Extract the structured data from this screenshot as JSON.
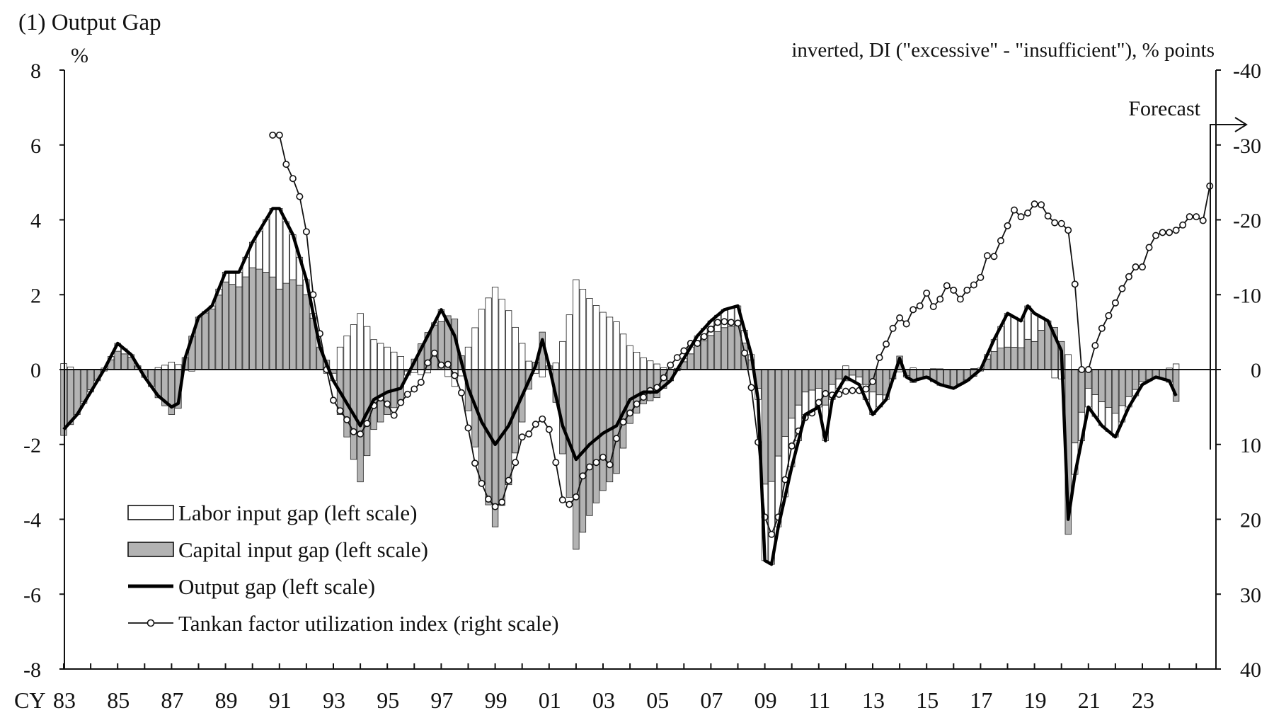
{
  "chart_data": {
    "type": "bar+line",
    "title": "(1) Output Gap",
    "left_axis_unit": "%",
    "right_axis_label": "inverted, DI (\"excessive\" - \"insufficient\"), % points",
    "x_axis_prefix": "CY",
    "forecast_label": "Forecast",
    "left_ylim": [
      -8,
      8
    ],
    "left_ticks": [
      "8",
      "6",
      "4",
      "2",
      "0",
      "-2",
      "-4",
      "-6",
      "-8"
    ],
    "right_ylim": [
      40,
      -40
    ],
    "right_ticks": [
      "-40",
      "-30",
      "-20",
      "-10",
      "0",
      "10",
      "20",
      "30",
      "40"
    ],
    "x_tick_labels": [
      "83",
      "85",
      "87",
      "89",
      "91",
      "93",
      "95",
      "97",
      "99",
      "01",
      "03",
      "05",
      "07",
      "09",
      "11",
      "13",
      "15",
      "17",
      "19",
      "21",
      "23"
    ],
    "x_start_year": 1983,
    "legend": [
      {
        "key": "labor",
        "label": "Labor input gap (left scale)"
      },
      {
        "key": "capital",
        "label": "Capital input gap (left scale)"
      },
      {
        "key": "output",
        "label": "Output gap (left scale)"
      },
      {
        "key": "tankan",
        "label": "Tankan factor utilization index (right scale)"
      }
    ],
    "output_gap_keypoints": [
      [
        1983.0,
        -1.6
      ],
      [
        1983.5,
        -1.2
      ],
      [
        1984.0,
        -0.6
      ],
      [
        1984.5,
        0.0
      ],
      [
        1985.0,
        0.7
      ],
      [
        1985.5,
        0.4
      ],
      [
        1986.0,
        -0.2
      ],
      [
        1986.5,
        -0.7
      ],
      [
        1987.0,
        -1.0
      ],
      [
        1987.25,
        -0.9
      ],
      [
        1987.5,
        0.3
      ],
      [
        1988.0,
        1.4
      ],
      [
        1988.5,
        1.7
      ],
      [
        1989.0,
        2.6
      ],
      [
        1989.5,
        2.6
      ],
      [
        1990.0,
        3.4
      ],
      [
        1990.5,
        4.0
      ],
      [
        1990.75,
        4.3
      ],
      [
        1991.0,
        4.3
      ],
      [
        1991.5,
        3.6
      ],
      [
        1992.0,
        2.4
      ],
      [
        1992.5,
        0.6
      ],
      [
        1993.0,
        -0.3
      ],
      [
        1993.5,
        -0.9
      ],
      [
        1994.0,
        -1.5
      ],
      [
        1994.5,
        -0.8
      ],
      [
        1995.0,
        -0.6
      ],
      [
        1995.5,
        -0.5
      ],
      [
        1996.0,
        0.2
      ],
      [
        1996.5,
        0.9
      ],
      [
        1997.0,
        1.6
      ],
      [
        1997.5,
        0.9
      ],
      [
        1998.0,
        -0.5
      ],
      [
        1998.5,
        -1.4
      ],
      [
        1999.0,
        -2.0
      ],
      [
        1999.5,
        -1.5
      ],
      [
        2000.0,
        -0.7
      ],
      [
        2000.5,
        0.1
      ],
      [
        2000.75,
        0.8
      ],
      [
        2001.0,
        0.1
      ],
      [
        2001.5,
        -1.5
      ],
      [
        2002.0,
        -2.4
      ],
      [
        2002.5,
        -2.0
      ],
      [
        2003.0,
        -1.7
      ],
      [
        2003.5,
        -1.5
      ],
      [
        2004.0,
        -0.8
      ],
      [
        2004.5,
        -0.6
      ],
      [
        2005.0,
        -0.6
      ],
      [
        2005.5,
        -0.3
      ],
      [
        2006.0,
        0.3
      ],
      [
        2006.5,
        0.9
      ],
      [
        2007.0,
        1.3
      ],
      [
        2007.5,
        1.6
      ],
      [
        2008.0,
        1.7
      ],
      [
        2008.5,
        0.4
      ],
      [
        2008.75,
        -0.8
      ],
      [
        2009.0,
        -5.1
      ],
      [
        2009.25,
        -5.2
      ],
      [
        2009.5,
        -4.2
      ],
      [
        2010.0,
        -2.6
      ],
      [
        2010.5,
        -1.2
      ],
      [
        2011.0,
        -1.0
      ],
      [
        2011.25,
        -1.9
      ],
      [
        2011.5,
        -0.8
      ],
      [
        2012.0,
        -0.2
      ],
      [
        2012.5,
        -0.4
      ],
      [
        2013.0,
        -1.2
      ],
      [
        2013.5,
        -0.8
      ],
      [
        2014.0,
        0.3
      ],
      [
        2014.25,
        -0.2
      ],
      [
        2014.5,
        -0.3
      ],
      [
        2015.0,
        -0.2
      ],
      [
        2015.5,
        -0.4
      ],
      [
        2016.0,
        -0.5
      ],
      [
        2016.5,
        -0.3
      ],
      [
        2017.0,
        0.0
      ],
      [
        2017.5,
        0.8
      ],
      [
        2018.0,
        1.5
      ],
      [
        2018.5,
        1.3
      ],
      [
        2018.75,
        1.7
      ],
      [
        2019.0,
        1.5
      ],
      [
        2019.5,
        1.3
      ],
      [
        2020.0,
        0.5
      ],
      [
        2020.25,
        -4.0
      ],
      [
        2020.5,
        -2.8
      ],
      [
        2021.0,
        -1.0
      ],
      [
        2021.5,
        -1.5
      ],
      [
        2022.0,
        -1.8
      ],
      [
        2022.5,
        -1.0
      ],
      [
        2023.0,
        -0.4
      ],
      [
        2023.5,
        -0.2
      ],
      [
        2024.0,
        -0.3
      ],
      [
        2024.25,
        -0.7
      ]
    ],
    "labor_share_keypoints": [
      [
        1983.0,
        -0.1
      ],
      [
        1985.0,
        0.3
      ],
      [
        1987.0,
        -0.2
      ],
      [
        1988.0,
        0.0
      ],
      [
        1990.0,
        0.2
      ],
      [
        1991.0,
        0.5
      ],
      [
        1992.5,
        0.0
      ],
      [
        1993.0,
        -1.0
      ],
      [
        1995.0,
        -1.0
      ],
      [
        1997.0,
        0.2
      ],
      [
        1998.0,
        -1.2
      ],
      [
        2000.0,
        -1.0
      ],
      [
        2001.0,
        0.0
      ],
      [
        2002.0,
        -1.0
      ],
      [
        2004.0,
        -0.8
      ],
      [
        2006.0,
        0.3
      ],
      [
        2008.0,
        0.3
      ],
      [
        2009.0,
        0.4
      ],
      [
        2010.0,
        0.5
      ],
      [
        2011.0,
        0.5
      ],
      [
        2013.0,
        0.5
      ],
      [
        2014.0,
        -0.2
      ],
      [
        2016.0,
        0.0
      ],
      [
        2017.0,
        0.2
      ],
      [
        2018.0,
        0.6
      ],
      [
        2019.0,
        0.5
      ],
      [
        2020.0,
        -0.5
      ],
      [
        2020.5,
        0.3
      ],
      [
        2021.0,
        0.5
      ],
      [
        2023.0,
        0.2
      ],
      [
        2024.5,
        -0.3
      ]
    ],
    "tankan": [
      [
        1990.75,
        -31.3
      ],
      [
        1991.0,
        -31.3
      ],
      [
        1991.25,
        -27.4
      ],
      [
        1991.5,
        -25.5
      ],
      [
        1991.75,
        -23.1
      ],
      [
        1992.0,
        -18.4
      ],
      [
        1992.25,
        -10.0
      ],
      [
        1992.5,
        -4.8
      ],
      [
        1992.75,
        0.0
      ],
      [
        1993.0,
        4.1
      ],
      [
        1993.25,
        5.5
      ],
      [
        1993.5,
        6.7
      ],
      [
        1993.75,
        8.3
      ],
      [
        1994.0,
        8.6
      ],
      [
        1994.25,
        7.2
      ],
      [
        1994.5,
        4.8
      ],
      [
        1994.75,
        3.8
      ],
      [
        1995.0,
        4.6
      ],
      [
        1995.25,
        6.1
      ],
      [
        1995.5,
        4.4
      ],
      [
        1995.75,
        3.3
      ],
      [
        1996.0,
        2.6
      ],
      [
        1996.25,
        1.7
      ],
      [
        1996.5,
        -0.9
      ],
      [
        1996.75,
        -2.2
      ],
      [
        1997.0,
        -0.6
      ],
      [
        1997.25,
        -0.7
      ],
      [
        1997.5,
        0.8
      ],
      [
        1997.75,
        3.1
      ],
      [
        1998.0,
        7.8
      ],
      [
        1998.25,
        12.5
      ],
      [
        1998.5,
        15.2
      ],
      [
        1998.75,
        17.3
      ],
      [
        1999.0,
        18.3
      ],
      [
        1999.25,
        17.7
      ],
      [
        1999.5,
        14.8
      ],
      [
        1999.75,
        12.4
      ],
      [
        2000.0,
        9.0
      ],
      [
        2000.25,
        8.6
      ],
      [
        2000.5,
        7.3
      ],
      [
        2000.75,
        6.6
      ],
      [
        2001.0,
        8.0
      ],
      [
        2001.25,
        12.4
      ],
      [
        2001.5,
        17.4
      ],
      [
        2001.75,
        18.0
      ],
      [
        2002.0,
        17.0
      ],
      [
        2002.25,
        14.2
      ],
      [
        2002.5,
        13.0
      ],
      [
        2002.75,
        12.4
      ],
      [
        2003.0,
        11.7
      ],
      [
        2003.25,
        12.7
      ],
      [
        2003.5,
        9.2
      ],
      [
        2003.75,
        7.0
      ],
      [
        2004.0,
        5.8
      ],
      [
        2004.25,
        4.6
      ],
      [
        2004.5,
        3.7
      ],
      [
        2004.75,
        2.8
      ],
      [
        2005.0,
        2.4
      ],
      [
        2005.25,
        1.1
      ],
      [
        2005.5,
        -0.6
      ],
      [
        2005.75,
        -1.6
      ],
      [
        2006.0,
        -2.5
      ],
      [
        2006.25,
        -3.5
      ],
      [
        2006.5,
        -3.5
      ],
      [
        2006.75,
        -4.4
      ],
      [
        2007.0,
        -5.4
      ],
      [
        2007.25,
        -6.3
      ],
      [
        2007.5,
        -6.4
      ],
      [
        2007.75,
        -6.3
      ],
      [
        2008.0,
        -6.2
      ],
      [
        2008.25,
        -2.2
      ],
      [
        2008.5,
        2.4
      ],
      [
        2008.75,
        9.7
      ],
      [
        2009.0,
        19.7
      ],
      [
        2009.25,
        22.0
      ],
      [
        2009.5,
        19.7
      ],
      [
        2009.75,
        14.7
      ],
      [
        2010.0,
        10.2
      ],
      [
        2010.25,
        8.2
      ],
      [
        2010.5,
        6.4
      ],
      [
        2010.75,
        5.8
      ],
      [
        2011.0,
        4.4
      ],
      [
        2011.25,
        3.2
      ],
      [
        2011.5,
        3.4
      ],
      [
        2011.75,
        3.3
      ],
      [
        2012.0,
        2.9
      ],
      [
        2012.25,
        2.8
      ],
      [
        2012.5,
        2.8
      ],
      [
        2012.75,
        2.6
      ],
      [
        2013.0,
        1.6
      ],
      [
        2013.25,
        -1.6
      ],
      [
        2013.5,
        -3.4
      ],
      [
        2013.75,
        -5.5
      ],
      [
        2014.0,
        -6.9
      ],
      [
        2014.25,
        -6.1
      ],
      [
        2014.5,
        -8.0
      ],
      [
        2014.75,
        -8.5
      ],
      [
        2015.0,
        -10.2
      ],
      [
        2015.25,
        -8.4
      ],
      [
        2015.5,
        -9.4
      ],
      [
        2015.75,
        -11.2
      ],
      [
        2016.0,
        -10.6
      ],
      [
        2016.25,
        -9.4
      ],
      [
        2016.5,
        -10.6
      ],
      [
        2016.75,
        -11.3
      ],
      [
        2017.0,
        -12.3
      ],
      [
        2017.25,
        -15.2
      ],
      [
        2017.5,
        -15.1
      ],
      [
        2017.75,
        -17.2
      ],
      [
        2018.0,
        -19.2
      ],
      [
        2018.25,
        -21.3
      ],
      [
        2018.5,
        -20.4
      ],
      [
        2018.75,
        -20.9
      ],
      [
        2019.0,
        -22.1
      ],
      [
        2019.25,
        -22.0
      ],
      [
        2019.5,
        -20.5
      ],
      [
        2019.75,
        -19.6
      ],
      [
        2020.0,
        -19.5
      ],
      [
        2020.25,
        -18.6
      ],
      [
        2020.5,
        -11.4
      ],
      [
        2020.75,
        0.0
      ],
      [
        2021.0,
        0.0
      ],
      [
        2021.25,
        -3.2
      ],
      [
        2021.5,
        -5.5
      ],
      [
        2021.75,
        -7.2
      ],
      [
        2022.0,
        -8.9
      ],
      [
        2022.25,
        -10.8
      ],
      [
        2022.5,
        -12.4
      ],
      [
        2022.75,
        -13.7
      ],
      [
        2023.0,
        -13.7
      ],
      [
        2023.25,
        -16.3
      ],
      [
        2023.5,
        -17.9
      ],
      [
        2023.75,
        -18.3
      ],
      [
        2024.0,
        -18.3
      ],
      [
        2024.25,
        -18.6
      ],
      [
        2024.5,
        -19.3
      ],
      [
        2024.75,
        -20.4
      ],
      [
        2025.0,
        -20.4
      ],
      [
        2025.25,
        -19.9
      ],
      [
        2025.5,
        -24.5
      ]
    ]
  }
}
